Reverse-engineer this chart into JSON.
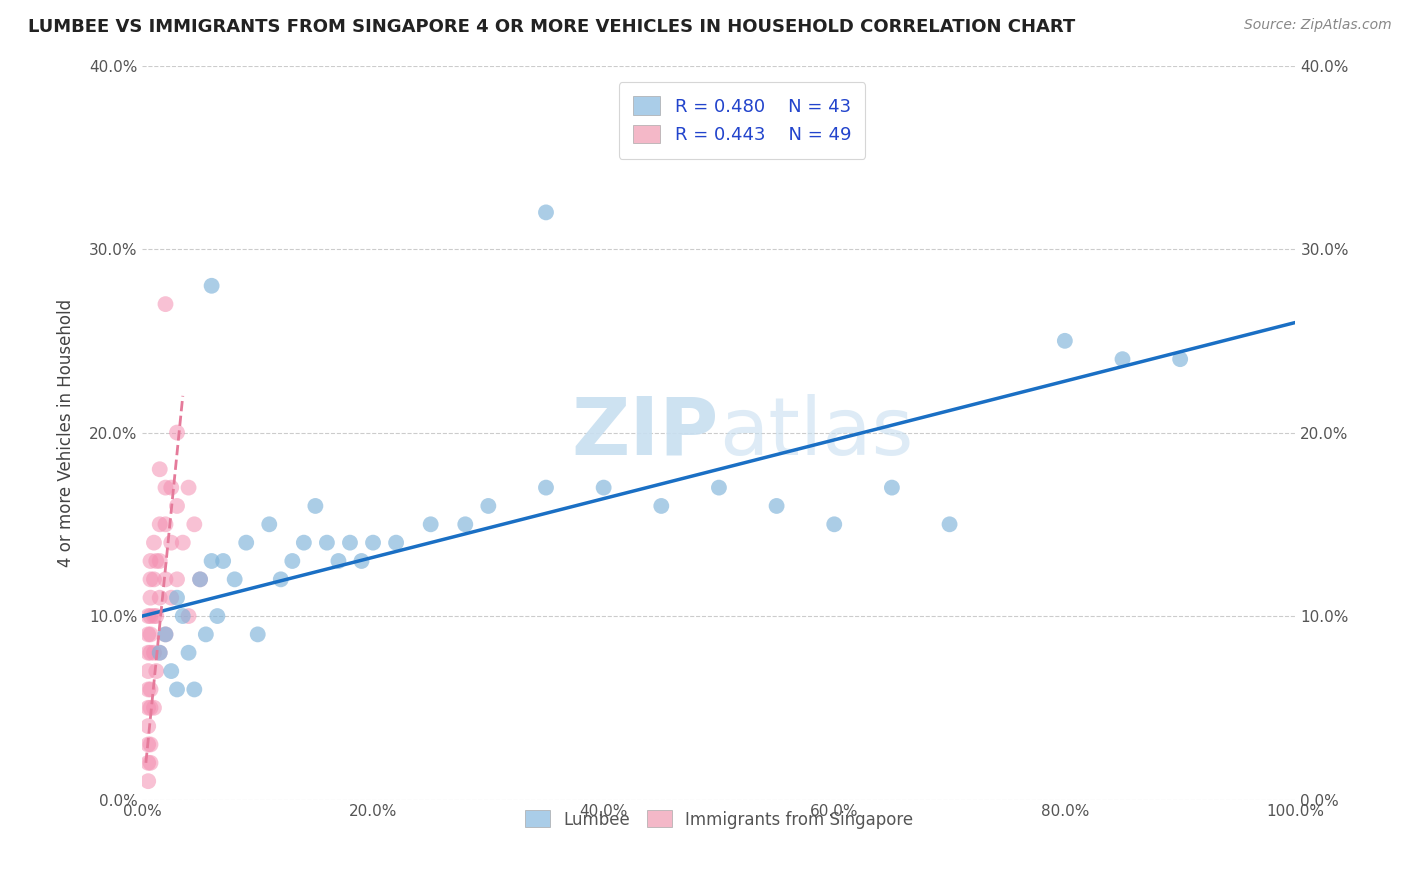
{
  "title": "LUMBEE VS IMMIGRANTS FROM SINGAPORE 4 OR MORE VEHICLES IN HOUSEHOLD CORRELATION CHART",
  "source_text": "Source: ZipAtlas.com",
  "ylabel": "4 or more Vehicles in Household",
  "xlim": [
    0,
    100
  ],
  "ylim": [
    0,
    40
  ],
  "xtick_vals": [
    0,
    20,
    40,
    60,
    80,
    100
  ],
  "ytick_vals": [
    0,
    10,
    20,
    30,
    40
  ],
  "lumbee_color": "#7fb3d9",
  "lumbee_edge": "#7fb3d9",
  "singapore_color": "#f48fb1",
  "singapore_edge": "#f48fb1",
  "lumbee_line_color": "#1a6fc4",
  "singapore_line_color": "#e57a9a",
  "legend_color_lumbee": "#aacde8",
  "legend_color_singapore": "#f4b8c8",
  "watermark_color": "#c8dff0",
  "lumbee_x": [
    1.5,
    2,
    2.5,
    3,
    3.5,
    4,
    4.5,
    5,
    5.5,
    6,
    6.5,
    7,
    8,
    9,
    10,
    11,
    12,
    13,
    14,
    15,
    16,
    17,
    18,
    19,
    20,
    22,
    25,
    28,
    30,
    35,
    40,
    45,
    50,
    55,
    60,
    65,
    70,
    80,
    85,
    90,
    3,
    6,
    35
  ],
  "lumbee_y": [
    8,
    9,
    7,
    11,
    10,
    8,
    6,
    12,
    9,
    13,
    10,
    13,
    12,
    14,
    9,
    15,
    12,
    13,
    14,
    16,
    14,
    13,
    14,
    13,
    14,
    14,
    15,
    15,
    16,
    17,
    17,
    16,
    17,
    16,
    15,
    17,
    15,
    25,
    24,
    24,
    6,
    28,
    32
  ],
  "singapore_x": [
    0.5,
    0.5,
    0.5,
    0.5,
    0.5,
    0.5,
    0.5,
    0.5,
    0.5,
    0.5,
    0.7,
    0.7,
    0.7,
    0.7,
    0.7,
    0.7,
    0.7,
    0.7,
    0.7,
    0.7,
    1.0,
    1.0,
    1.0,
    1.0,
    1.0,
    1.2,
    1.2,
    1.2,
    1.5,
    1.5,
    1.5,
    1.5,
    1.5,
    2.0,
    2.0,
    2.0,
    2.0,
    2.5,
    2.5,
    2.5,
    3.0,
    3.0,
    3.0,
    3.5,
    4.0,
    4.0,
    4.5,
    5.0,
    2.0
  ],
  "singapore_y": [
    1,
    2,
    3,
    4,
    5,
    6,
    7,
    8,
    9,
    10,
    2,
    3,
    5,
    6,
    8,
    9,
    10,
    11,
    12,
    13,
    5,
    8,
    10,
    12,
    14,
    7,
    10,
    13,
    8,
    11,
    13,
    15,
    18,
    9,
    12,
    15,
    17,
    11,
    14,
    17,
    12,
    16,
    20,
    14,
    10,
    17,
    15,
    12,
    27
  ],
  "lumbee_line_x0": 0,
  "lumbee_line_y0": 10.0,
  "lumbee_line_x1": 100,
  "lumbee_line_y1": 26.0,
  "singapore_line_x0": 0.3,
  "singapore_line_y0": 2.0,
  "singapore_line_x1": 3.5,
  "singapore_line_y1": 22.0
}
